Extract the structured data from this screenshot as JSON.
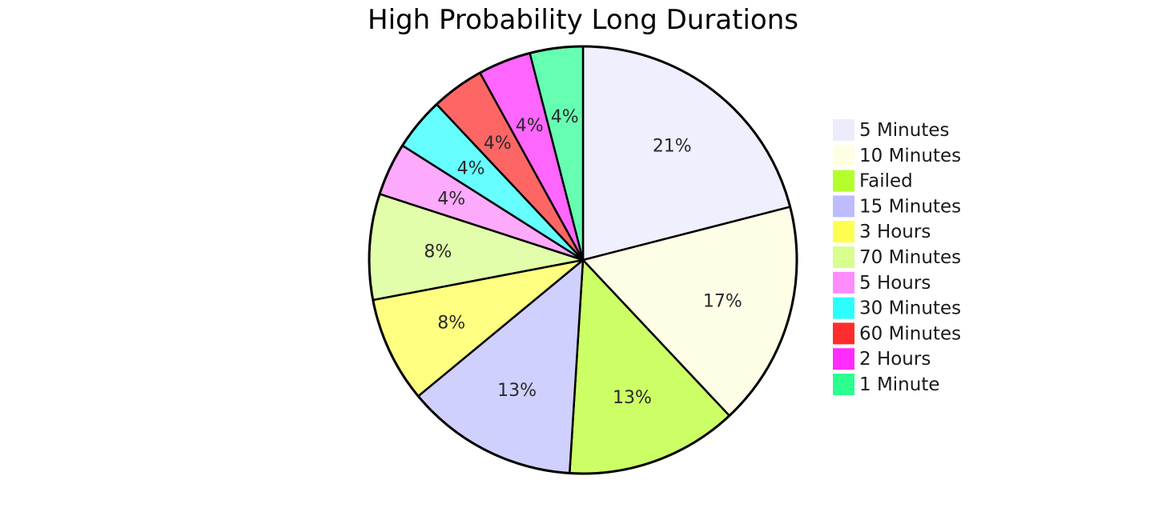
{
  "chart_data": {
    "type": "pie",
    "title": "High Probability Long Durations",
    "legend_position": "right",
    "slices": [
      {
        "label": "5 Minutes",
        "value": 21,
        "display": "21%",
        "color": "#efeffd",
        "legend_color": "#ececfc"
      },
      {
        "label": "10 Minutes",
        "value": 17,
        "display": "17%",
        "color": "#fefee7",
        "legend_color": "#fefee2"
      },
      {
        "label": "Failed",
        "value": 13,
        "display": "13%",
        "color": "#ccfe66",
        "legend_color": "#b4fe2c"
      },
      {
        "label": "15 Minutes",
        "value": 13,
        "display": "13%",
        "color": "#d0d0fe",
        "legend_color": "#bcbcfe"
      },
      {
        "label": "3 Hours",
        "value": 8,
        "display": "8%",
        "color": "#fefe80",
        "legend_color": "#fefe50"
      },
      {
        "label": "70 Minutes",
        "value": 8,
        "display": "8%",
        "color": "#e2feaa",
        "legend_color": "#d8fe90"
      },
      {
        "label": "5 Hours",
        "value": 4,
        "display": "4%",
        "color": "#fdaafd",
        "legend_color": "#fd8cfd"
      },
      {
        "label": "30 Minutes",
        "value": 4,
        "display": "4%",
        "color": "#66fefe",
        "legend_color": "#2cfefe"
      },
      {
        "label": "60 Minutes",
        "value": 4,
        "display": "4%",
        "color": "#fe6666",
        "legend_color": "#fe2c2c"
      },
      {
        "label": "2 Hours",
        "value": 4,
        "display": "4%",
        "color": "#fe66fe",
        "legend_color": "#fe2cfe"
      },
      {
        "label": "1 Minute",
        "value": 4,
        "display": "4%",
        "color": "#66feb0",
        "legend_color": "#2cfe90"
      }
    ]
  }
}
